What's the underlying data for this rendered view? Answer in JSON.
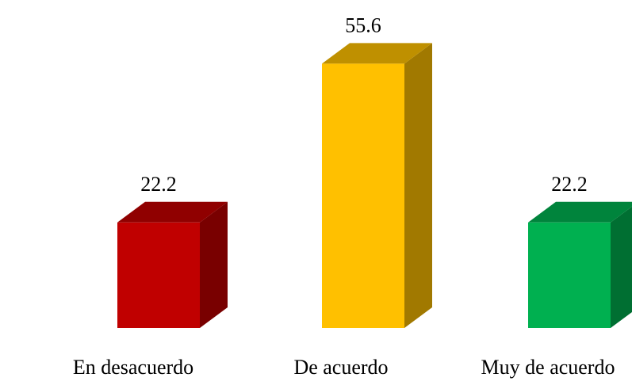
{
  "chart_data": {
    "type": "bar3d",
    "categories": [
      "En desacuerdo",
      "De acuerdo",
      "Muy de acuerdo"
    ],
    "values": [
      22.2,
      55.6,
      22.2
    ],
    "colors": [
      "#c00000",
      "#ffc000",
      "#00b050"
    ]
  }
}
